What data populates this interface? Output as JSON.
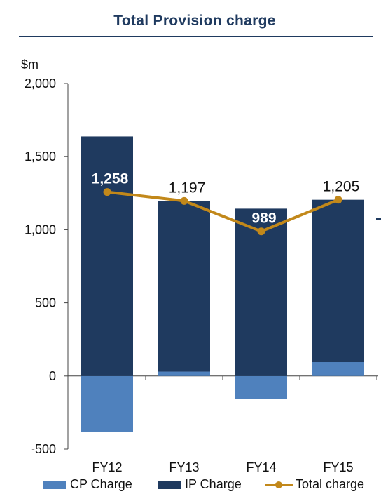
{
  "title": "Total Provision charge",
  "chart_data": {
    "type": "bar",
    "stacked": true,
    "title": "Total Provision charge",
    "ylabel": "$m",
    "xlabel": "",
    "ylim": [
      -500,
      2000
    ],
    "yticks": [
      -500,
      0,
      500,
      1000,
      1500,
      2000
    ],
    "ytick_labels": [
      "-500",
      "0",
      "500",
      "1,000",
      "1,500",
      "2,000"
    ],
    "categories": [
      "FY12",
      "FY13",
      "FY14",
      "FY15"
    ],
    "series": [
      {
        "name": "CP Charge",
        "type": "bar",
        "color": "#4f81bd",
        "values": [
          -380,
          30,
          -155,
          95
        ]
      },
      {
        "name": "IP Charge",
        "type": "bar",
        "color": "#1f3a5f",
        "values": [
          1638,
          1167,
          1144,
          1110
        ]
      },
      {
        "name": "Total charge",
        "type": "line",
        "color": "#c2881a",
        "values": [
          1258,
          1197,
          989,
          1205
        ],
        "labels": [
          "1,258",
          "1,197",
          "989",
          "1,205"
        ]
      }
    ],
    "legend_position": "bottom",
    "grid": false
  }
}
